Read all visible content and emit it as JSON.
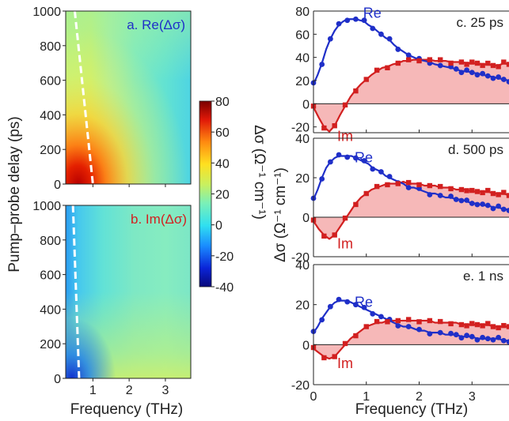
{
  "figure": {
    "left_ylabel": "Pump–probe delay (ps)",
    "left_xlabel": "Frequency (THz)",
    "right_ylabel": "Δσ (Ω⁻¹ cm⁻¹)",
    "right_xlabel": "Frequency (THz)",
    "colorbar_label": "Δσ (Ω⁻¹ cm⁻¹)",
    "colors": {
      "re": "#1f2fc8",
      "im": "#d22020",
      "fill": "#f6b8b8",
      "dash": "#ffffff"
    }
  },
  "chart_data": [
    {
      "type": "heatmap",
      "panel": "a",
      "title": "a. Re(Δσ)",
      "xlabel": "Frequency (THz)",
      "ylabel": "Pump–probe delay (ps)",
      "xlim": [
        0.25,
        3.7
      ],
      "ylim": [
        0,
        1000
      ],
      "xticks": [
        "1",
        "2",
        "3"
      ],
      "yticks": [
        "0",
        "200",
        "400",
        "600",
        "800",
        "1000"
      ],
      "dashed_line": [
        [
          0.5,
          1000
        ],
        [
          1.0,
          0
        ]
      ]
    },
    {
      "type": "heatmap",
      "panel": "b",
      "title": "b. Im(Δσ)",
      "xlabel": "Frequency (THz)",
      "ylabel": "Pump–probe delay (ps)",
      "xlim": [
        0.25,
        3.7
      ],
      "ylim": [
        0,
        1000
      ],
      "xticks": [
        "1",
        "2",
        "3"
      ],
      "yticks": [
        "0",
        "200",
        "400",
        "600",
        "800",
        "1000"
      ],
      "dashed_line": [
        [
          0.45,
          1000
        ],
        [
          0.62,
          0
        ]
      ]
    },
    {
      "type": "colorbar",
      "label": "Δσ (Ω⁻¹ cm⁻¹)",
      "range": [
        -40,
        80
      ],
      "ticks": [
        "80",
        "60",
        "40",
        "20",
        "0",
        "-20",
        "-40"
      ]
    },
    {
      "type": "scatter",
      "panel": "c",
      "title": "c. 25 ps",
      "ylim": [
        -25,
        80
      ],
      "xlim": [
        0,
        3.7
      ],
      "yticks": [
        "80",
        "60",
        "40",
        "20",
        "0",
        "-20"
      ],
      "series": [
        {
          "name": "Re",
          "x": [
            0.0,
            0.08,
            0.16,
            0.24,
            0.32,
            0.4,
            0.48,
            0.56,
            0.64,
            0.72,
            0.8,
            0.88,
            0.96,
            1.04,
            1.12,
            1.2,
            1.28,
            1.36,
            1.44,
            1.52,
            1.6,
            1.7,
            1.8,
            1.9,
            2.0,
            2.1,
            2.2,
            2.3,
            2.4,
            2.5,
            2.6,
            2.7,
            2.8,
            2.9,
            3.0,
            3.1,
            3.2,
            3.3,
            3.4,
            3.5,
            3.6,
            3.7
          ],
          "y": [
            17,
            25,
            35,
            47,
            56,
            63,
            68,
            71,
            73,
            73,
            73,
            72,
            71,
            68,
            66,
            63,
            60,
            57,
            55,
            51,
            48,
            45,
            42,
            40,
            38,
            37,
            36,
            34,
            33,
            32,
            31,
            30,
            28,
            28,
            27,
            26,
            25,
            24,
            23,
            22,
            21,
            20
          ]
        },
        {
          "name": "Im",
          "x": [
            0.0,
            0.1,
            0.2,
            0.3,
            0.4,
            0.5,
            0.6,
            0.7,
            0.8,
            0.9,
            1.0,
            1.1,
            1.2,
            1.3,
            1.4,
            1.5,
            1.6,
            1.7,
            1.8,
            1.9,
            2.0,
            2.1,
            2.2,
            2.3,
            2.4,
            2.5,
            2.6,
            2.7,
            2.8,
            2.9,
            3.0,
            3.1,
            3.2,
            3.3,
            3.4,
            3.5,
            3.6,
            3.7
          ],
          "y": [
            -3,
            -12,
            -20,
            -24,
            -19,
            -10,
            -2,
            6,
            12,
            17,
            21,
            25,
            28,
            31,
            32,
            34,
            35,
            37,
            37,
            38,
            38,
            38,
            38,
            37,
            37,
            37,
            36,
            36,
            36,
            35,
            35,
            35,
            34,
            34,
            33,
            33,
            35,
            34
          ]
        }
      ],
      "fit_re": {
        "amp": 73,
        "peak": 0.82,
        "width": 0.78,
        "base": 20
      },
      "fit_im": {
        "amp": 38,
        "peak": 2.2,
        "dip": -22,
        "dip_at": 0.3
      }
    },
    {
      "type": "scatter",
      "panel": "d",
      "title": "d. 500 ps",
      "ylim": [
        -20,
        40
      ],
      "xlim": [
        0,
        3.7
      ],
      "yticks": [
        "40",
        "20",
        "0",
        "-20"
      ],
      "series": [
        {
          "name": "Re",
          "x": [
            0.0,
            0.08,
            0.16,
            0.24,
            0.32,
            0.4,
            0.48,
            0.56,
            0.64,
            0.72,
            0.8,
            0.88,
            0.96,
            1.04,
            1.12,
            1.2,
            1.28,
            1.36,
            1.44,
            1.52,
            1.6,
            1.7,
            1.8,
            1.9,
            2.0,
            2.1,
            2.2,
            2.3,
            2.4,
            2.5,
            2.6,
            2.7,
            2.8,
            2.9,
            3.0,
            3.1,
            3.2,
            3.3,
            3.4,
            3.5,
            3.6,
            3.7
          ],
          "y": [
            9,
            14,
            20,
            25,
            28,
            30,
            31,
            31,
            31,
            31,
            30,
            29,
            28,
            27,
            25,
            24,
            23,
            21,
            20,
            19,
            18,
            17,
            15,
            15,
            14,
            13,
            12,
            12,
            11,
            10,
            10,
            9,
            9,
            8,
            7,
            7,
            6,
            6,
            5,
            5,
            4,
            4
          ]
        },
        {
          "name": "Im",
          "x": [
            0.0,
            0.1,
            0.2,
            0.3,
            0.4,
            0.5,
            0.6,
            0.7,
            0.8,
            0.9,
            1.0,
            1.1,
            1.2,
            1.3,
            1.4,
            1.5,
            1.6,
            1.7,
            1.8,
            1.9,
            2.0,
            2.1,
            2.2,
            2.3,
            2.4,
            2.5,
            2.6,
            2.7,
            2.8,
            2.9,
            3.0,
            3.1,
            3.2,
            3.3,
            3.4,
            3.5,
            3.6,
            3.7
          ],
          "y": [
            -2,
            -6,
            -9,
            -11,
            -9,
            -5,
            -1,
            3,
            7,
            10,
            12,
            14,
            15,
            16,
            17,
            17,
            17,
            18,
            17,
            17,
            17,
            16,
            16,
            16,
            15,
            15,
            15,
            14,
            14,
            14,
            13,
            13,
            13,
            13,
            12,
            12,
            12,
            11
          ]
        }
      ]
    },
    {
      "type": "scatter",
      "panel": "e",
      "title": "e. 1 ns",
      "xlabel": "Frequency (THz)",
      "ylim": [
        -20,
        40
      ],
      "xlim": [
        0,
        3.7
      ],
      "xticks": [
        "0",
        "1",
        "2",
        "3"
      ],
      "yticks": [
        "40",
        "20",
        "0",
        "-20"
      ],
      "series": [
        {
          "name": "Re",
          "x": [
            0.0,
            0.08,
            0.16,
            0.24,
            0.32,
            0.4,
            0.48,
            0.56,
            0.64,
            0.72,
            0.8,
            0.88,
            0.96,
            1.04,
            1.12,
            1.2,
            1.28,
            1.36,
            1.44,
            1.52,
            1.6,
            1.7,
            1.8,
            1.9,
            2.0,
            2.1,
            2.2,
            2.3,
            2.4,
            2.5,
            2.6,
            2.7,
            2.8,
            2.9,
            3.0,
            3.1,
            3.2,
            3.3,
            3.4,
            3.5,
            3.6,
            3.7
          ],
          "y": [
            6,
            9,
            13,
            16,
            19,
            21,
            22,
            22,
            22,
            21,
            20,
            19,
            18,
            17,
            16,
            15,
            14,
            13,
            12,
            11,
            10,
            9,
            9,
            8,
            7,
            7,
            6,
            6,
            6,
            5,
            5,
            5,
            4,
            4,
            4,
            3,
            3,
            3,
            3,
            3,
            2,
            2
          ]
        },
        {
          "name": "Im",
          "x": [
            0.0,
            0.1,
            0.2,
            0.3,
            0.4,
            0.5,
            0.6,
            0.7,
            0.8,
            0.9,
            1.0,
            1.1,
            1.2,
            1.3,
            1.4,
            1.5,
            1.6,
            1.7,
            1.8,
            1.9,
            2.0,
            2.1,
            2.2,
            2.3,
            2.4,
            2.5,
            2.6,
            2.7,
            2.8,
            2.9,
            3.0,
            3.1,
            3.2,
            3.3,
            3.4,
            3.5,
            3.6,
            3.7
          ],
          "y": [
            -2,
            -4,
            -6,
            -7,
            -6,
            -3,
            0,
            3,
            5,
            7,
            9,
            10,
            11,
            11,
            12,
            12,
            12,
            12,
            12,
            12,
            12,
            12,
            12,
            11,
            11,
            11,
            11,
            11,
            10,
            10,
            10,
            10,
            10,
            10,
            9,
            9,
            9,
            9
          ]
        }
      ]
    }
  ]
}
